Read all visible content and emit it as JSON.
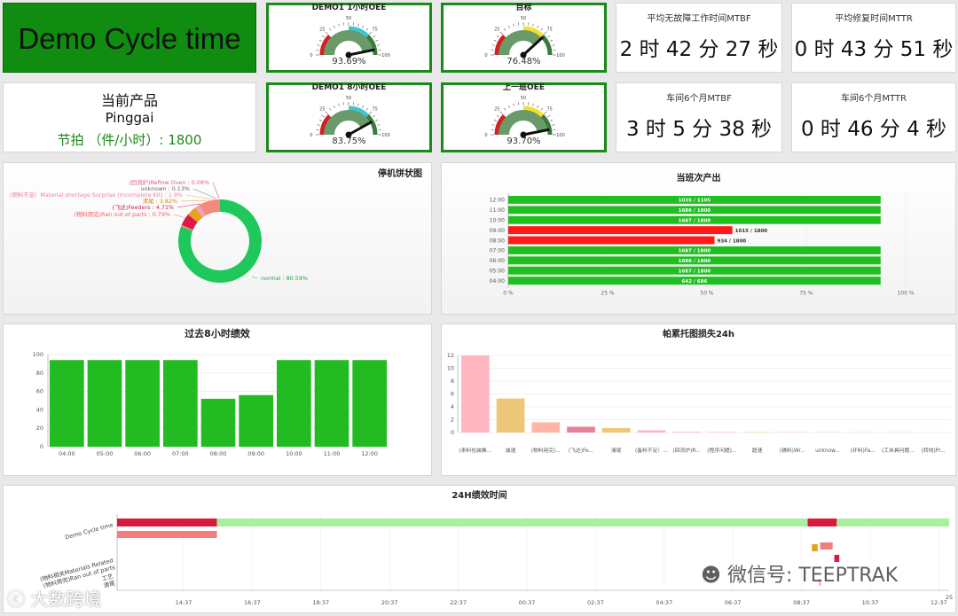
{
  "header": {
    "title": "Demo Cycle time"
  },
  "gauges": [
    {
      "title": "DEMO1 1小时OEE",
      "value": 93.69,
      "value_label": "93.69%",
      "colors": [
        "#d62020",
        "#3cc8d0",
        "#3a7a3a"
      ]
    },
    {
      "title": "目标",
      "value": 76.48,
      "value_label": "76.48%",
      "colors": [
        "#d62020",
        "#f3e02a",
        "#3a7a3a"
      ]
    },
    {
      "title": "DEMO1 8小时OEE",
      "value": 83.75,
      "value_label": "83.75%",
      "colors": [
        "#d62020",
        "#3cc8d0",
        "#3a7a3a"
      ]
    },
    {
      "title": "上一班OEE",
      "value": 93.7,
      "value_label": "93.70%",
      "colors": [
        "#d62020",
        "#f3e02a",
        "#3a7a3a"
      ]
    }
  ],
  "gauge_ticks": [
    "0",
    "25",
    "50",
    "75",
    "100"
  ],
  "stats": [
    {
      "label": "平均无故障工作时间MTBF",
      "value": "2 时 42 分 27 秒"
    },
    {
      "label": "平均修复时间MTTR",
      "value": "0 时 43 分 51 秒"
    },
    {
      "label": "车间6个月MTBF",
      "value": "3 时 5 分 38 秒"
    },
    {
      "label": "车间6个月MTTR",
      "value": "0 时 46 分 4 秒"
    }
  ],
  "product": {
    "heading": "当前产品",
    "name": "Pinggai",
    "rate": "节拍 （件/小时）: 1800"
  },
  "chart_data": [
    {
      "type": "pie",
      "title": "停机饼状图",
      "slices": [
        {
          "label": "normal : 80.59%",
          "value": 80.59,
          "color": "#1fc85a"
        },
        {
          "label": "(物料用完)Ran out of parts : 0.79%",
          "value": 0.79,
          "color": "#f08080"
        },
        {
          "label": "(飞达)Feeders : 4.71%",
          "value": 4.71,
          "color": "#d81b4a"
        },
        {
          "label": "清尾 : 3.82%",
          "value": 3.82,
          "color": "#e8a020"
        },
        {
          "label": "(物料不足）Material shortage Surprise (Incomplete Kit) : 1.9%",
          "value": 1.9,
          "color": "#f3a0b8"
        },
        {
          "label": "unknown : 0.13%",
          "value": 0.13,
          "color": "#888888"
        },
        {
          "label": "(回流炉)Reflow Oven : 0.06%",
          "value": 0.06,
          "color": "#e0607a"
        },
        {
          "label": "",
          "value": 7.99,
          "color": "#f58a7a"
        }
      ]
    },
    {
      "type": "bar",
      "orientation": "horizontal",
      "title": "当班次产出",
      "categories": [
        "12:00",
        "11:00",
        "10:00",
        "09:00",
        "08:00",
        "07:00",
        "06:00",
        "05:00",
        "04:00"
      ],
      "values": [
        93.7,
        93.7,
        93.7,
        56.4,
        51.9,
        93.7,
        93.7,
        93.7,
        93.7
      ],
      "labels": [
        "1035 / 1105",
        "1686 / 1800",
        "1687 / 1800",
        "1015 / 1800",
        "934 / 1800",
        "1687 / 1800",
        "1686 / 1800",
        "1687 / 1800",
        "642 / 686"
      ],
      "colors": [
        "#1fbf1f",
        "#1fbf1f",
        "#1fbf1f",
        "#ff1a1a",
        "#ff1a1a",
        "#1fbf1f",
        "#1fbf1f",
        "#1fbf1f",
        "#1fbf1f"
      ],
      "xticks": [
        "0 %",
        "25 %",
        "50 %",
        "75 %",
        "100 %"
      ],
      "xlim": [
        0,
        100
      ]
    },
    {
      "type": "bar",
      "title": "过去8小时绩效",
      "categories": [
        "04:00",
        "05:00",
        "06:00",
        "07:00",
        "08:00",
        "09:00",
        "10:00",
        "11:00",
        "12:00"
      ],
      "values": [
        94,
        94,
        94,
        94,
        52,
        56,
        94,
        94,
        94
      ],
      "color": "#22bb22",
      "yticks": [
        "0",
        "20",
        "40",
        "60",
        "80",
        "100"
      ],
      "ylim": [
        0,
        100
      ]
    },
    {
      "type": "bar",
      "title": "帕累托图损失24h",
      "categories": [
        "(来料包装撕...",
        "减速",
        "(物料用完)...",
        "(飞达)Fe...",
        "清尾",
        "(备料不足）...",
        "(回流炉)R...",
        "(程序问题)...",
        "超速",
        "(辅料)Wr...",
        "unknow...",
        "(环料)Fa...",
        "(工夹具问题...",
        "(转线)Pr..."
      ],
      "values": [
        12,
        5.3,
        1.6,
        0.9,
        0.7,
        0.35,
        0.12,
        0.08,
        0.06,
        0.05,
        0.04,
        0.03,
        0.03,
        0.02
      ],
      "colors": [
        "#ffb6c1",
        "#ecc878",
        "#ffb6a8",
        "#e8809a",
        "#ecc878",
        "#ffb6c1",
        "#ffb6c1",
        "#ffb6c1",
        "#ecc878",
        "#ffb6c1",
        "#cccccc",
        "#ffb6c1",
        "#ffb6c1",
        "#ffb6c1"
      ],
      "yticks": [
        "0",
        "2",
        "4",
        "6",
        "8",
        "10",
        "12"
      ],
      "ylim": [
        0,
        12
      ]
    },
    {
      "type": "timeline",
      "title": "24H绩效时间",
      "rows": [
        "Demo Cycle time",
        "(物料相关Materials Related\n(物料用完)Ran out of parts",
        "工艺\n清尾"
      ],
      "xticks": [
        "14:37",
        "16:37",
        "18:37",
        "20:37",
        "22:37",
        "00:37",
        "02:37",
        "04:37",
        "06:37",
        "08:37",
        "10:37",
        "12:37"
      ],
      "first_tick_label": "25",
      "segments": [
        {
          "row": 0,
          "start": 0.0,
          "end": 0.12,
          "color": "#d81b3c"
        },
        {
          "row": 0,
          "start": 0.12,
          "end": 0.83,
          "color": "#a8f0a0"
        },
        {
          "row": 0,
          "start": 0.83,
          "end": 0.865,
          "color": "#d81b3c"
        },
        {
          "row": 0,
          "start": 0.865,
          "end": 1.0,
          "color": "#a8f0a0"
        },
        {
          "row": 1,
          "start": 0.0,
          "end": 0.12,
          "color": "#f08080"
        },
        {
          "row": 1,
          "start": 0.845,
          "end": 0.86,
          "color": "#f08080"
        },
        {
          "row": 1,
          "start": 0.862,
          "end": 0.868,
          "color": "#d81b3c"
        },
        {
          "row": 2,
          "start": 0.835,
          "end": 0.842,
          "color": "#e8a020"
        },
        {
          "row": 2,
          "start": 0.843,
          "end": 0.846,
          "color": "#ffb6c1"
        }
      ]
    }
  ],
  "watermarks": {
    "left": "大数跨境",
    "right": "微信号: TEEPTRAK"
  }
}
